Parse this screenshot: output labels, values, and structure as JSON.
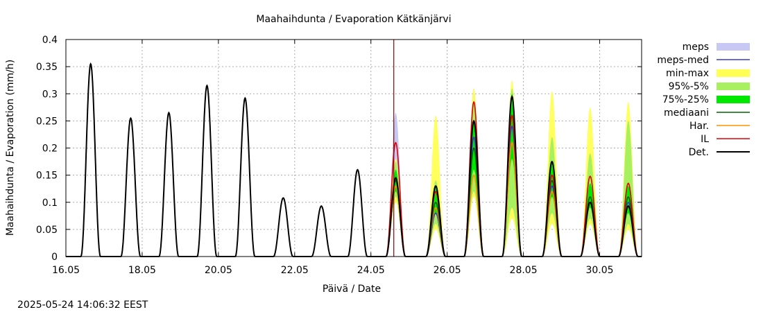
{
  "chart_data": {
    "type": "line",
    "title": "Maahaihdunta / Evaporation  Kätkänjärvi",
    "xlabel": "Päivä / Date",
    "ylabel": "Maahaihdunta / Evaporation (mm/h)",
    "ylim": [
      0,
      0.4
    ],
    "xlim": [
      0,
      15.1
    ],
    "x_unit": "days since 16.05",
    "x_tick_values": [
      0,
      2,
      4,
      6,
      8,
      10,
      12,
      14
    ],
    "x_tick_labels": [
      "16.05",
      "18.05",
      "20.05",
      "22.05",
      "24.05",
      "26.05",
      "28.05",
      "30.05"
    ],
    "y_tick_values": [
      0,
      0.05,
      0.1,
      0.15,
      0.2,
      0.25,
      0.3,
      0.35,
      0.4
    ],
    "y_tick_labels": [
      "0",
      "0.05",
      "0.1",
      "0.15",
      "0.2",
      "0.25",
      "0.3",
      "0.35",
      "0.4"
    ],
    "grid": true,
    "legend_position": "right",
    "forecast_start_x": 8.6,
    "timestamp": "2025-05-24 14:06:32 EEST",
    "history_peaks": [
      {
        "x": 0.65,
        "h": 0.355
      },
      {
        "x": 1.7,
        "h": 0.255
      },
      {
        "x": 2.7,
        "h": 0.265
      },
      {
        "x": 3.7,
        "h": 0.315
      },
      {
        "x": 4.7,
        "h": 0.292
      },
      {
        "x": 5.7,
        "h": 0.108
      },
      {
        "x": 6.7,
        "h": 0.093
      },
      {
        "x": 7.65,
        "h": 0.16
      }
    ],
    "forecast_days": [
      {
        "x": 8.65,
        "min": 0.1,
        "max": 0.18,
        "q5": 0.11,
        "q95": 0.175,
        "q25": 0.12,
        "q75": 0.16,
        "med": 0.14,
        "meps": 0.265,
        "mepsmed": 0.13,
        "har": 0.13,
        "il": 0.21,
        "det": 0.145
      },
      {
        "x": 9.7,
        "min": 0.05,
        "max": 0.26,
        "q5": 0.06,
        "q95": 0.14,
        "q25": 0.08,
        "q75": 0.13,
        "med": 0.1,
        "meps": 0.12,
        "mepsmed": 0.08,
        "har": 0.09,
        "il": 0.12,
        "det": 0.13
      },
      {
        "x": 10.7,
        "min": 0.11,
        "max": 0.31,
        "q5": 0.12,
        "q95": 0.28,
        "q25": 0.16,
        "q75": 0.25,
        "med": 0.2,
        "meps": 0.31,
        "mepsmed": 0.22,
        "har": 0.15,
        "il": 0.285,
        "det": 0.25
      },
      {
        "x": 11.7,
        "min": 0.07,
        "max": 0.325,
        "q5": 0.09,
        "q95": 0.31,
        "q25": 0.18,
        "q75": 0.3,
        "med": 0.26,
        "meps": 0.26,
        "mepsmed": 0.24,
        "har": 0.21,
        "il": 0.26,
        "det": 0.295
      },
      {
        "x": 12.75,
        "min": 0.06,
        "max": 0.305,
        "q5": 0.08,
        "q95": 0.22,
        "q25": 0.11,
        "q75": 0.175,
        "med": 0.14,
        "meps": 0.14,
        "mepsmed": 0.13,
        "har": 0.12,
        "il": 0.15,
        "det": 0.175
      },
      {
        "x": 13.75,
        "min": 0.06,
        "max": 0.275,
        "q5": 0.07,
        "q95": 0.19,
        "q25": 0.09,
        "q75": 0.135,
        "med": 0.11,
        "meps": 0.12,
        "mepsmed": 0.1,
        "har": 0.1,
        "il": 0.148,
        "det": 0.1
      },
      {
        "x": 14.75,
        "min": 0.05,
        "max": 0.285,
        "q5": 0.06,
        "q95": 0.25,
        "q25": 0.08,
        "q75": 0.13,
        "med": 0.11,
        "meps": 0.12,
        "mepsmed": 0.1,
        "har": 0.11,
        "il": 0.135,
        "det": 0.093
      }
    ],
    "series": [
      {
        "name": "meps",
        "kind": "band",
        "color": "#c8c8f5"
      },
      {
        "name": "meps-med",
        "kind": "line",
        "color": "#3a3ac0"
      },
      {
        "name": "min-max",
        "kind": "band",
        "color": "#ffff55"
      },
      {
        "name": "95%-5%",
        "kind": "band",
        "color": "#a8f060"
      },
      {
        "name": "75%-25%",
        "kind": "band",
        "color": "#00e800"
      },
      {
        "name": "mediaani",
        "kind": "line",
        "color": "#006400"
      },
      {
        "name": "Har.",
        "kind": "line",
        "color": "#ff9000"
      },
      {
        "name": "IL",
        "kind": "line",
        "color": "#e00000"
      },
      {
        "name": "Det.",
        "kind": "line",
        "color": "#000000"
      }
    ],
    "vline_color": "#8b0000"
  }
}
